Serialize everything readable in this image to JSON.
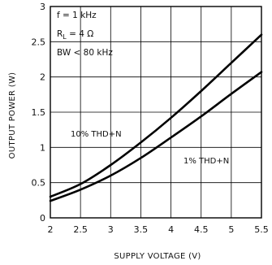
{
  "chart_data": {
    "type": "line",
    "title": "",
    "xlabel": "SUPPLY VOLTAGE (V)",
    "ylabel": "OUTPUT POWER (W)",
    "xlim": [
      2,
      5.5
    ],
    "ylim": [
      0,
      3
    ],
    "x_ticks": [
      2,
      2.5,
      3,
      3.5,
      4,
      4.5,
      5,
      5.5
    ],
    "x_tick_labels": [
      "2",
      "2.5",
      "3",
      "3.5",
      "4",
      "4.5",
      "5",
      "5.5"
    ],
    "y_ticks": [
      0,
      0.5,
      1,
      1.5,
      2,
      2.5,
      3
    ],
    "y_tick_labels": [
      "0",
      "0.5",
      "1",
      "1.5",
      "2",
      "2.5",
      "3"
    ],
    "grid": true,
    "conditions": {
      "line1": "f = 1 kHz",
      "line2_prefix": "R",
      "line2_sub": "L",
      "line2_suffix": " = 4 Ω",
      "line3": "BW < 80 kHz"
    },
    "series": [
      {
        "name": "10% THD+N",
        "x": [
          2,
          2.5,
          3,
          3.5,
          4,
          4.5,
          5,
          5.5
        ],
        "y": [
          0.3,
          0.48,
          0.75,
          1.07,
          1.42,
          1.8,
          2.2,
          2.6
        ]
      },
      {
        "name": "1% THD+N",
        "x": [
          2,
          2.5,
          3,
          3.5,
          4,
          4.5,
          5,
          5.5
        ],
        "y": [
          0.24,
          0.4,
          0.6,
          0.85,
          1.14,
          1.44,
          1.76,
          2.07
        ]
      }
    ]
  }
}
